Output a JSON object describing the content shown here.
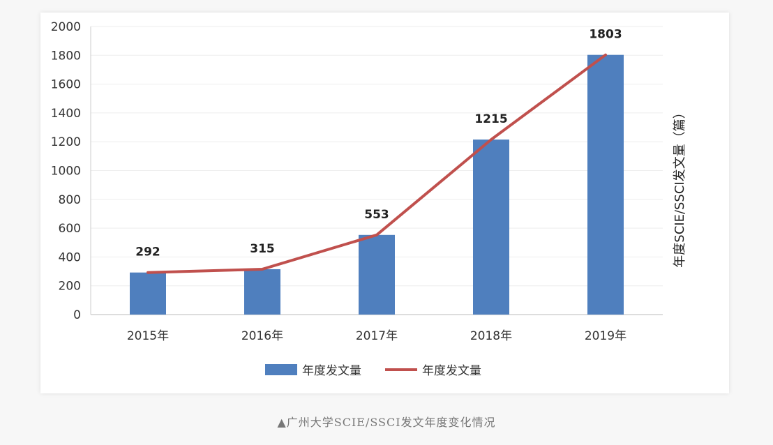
{
  "chart_data": {
    "type": "bar",
    "categories": [
      "2015年",
      "2016年",
      "2017年",
      "2018年",
      "2019年"
    ],
    "series": [
      {
        "name": "年度发文量",
        "kind": "bar",
        "values": [
          292,
          315,
          553,
          1215,
          1803
        ],
        "color": "#4f7fbe"
      },
      {
        "name": "年度发文量",
        "kind": "line",
        "values": [
          292,
          315,
          553,
          1215,
          1803
        ],
        "color": "#c0504d"
      }
    ],
    "data_labels": [
      "292",
      "315",
      "553",
      "1215",
      "1803"
    ],
    "yticks": [
      0,
      200,
      400,
      600,
      800,
      1000,
      1200,
      1400,
      1600,
      1800,
      2000
    ],
    "ylim": [
      0,
      2000
    ],
    "ylabel": "年度SCIE/SSCI发文量（篇）",
    "xlabel": "",
    "grid": true,
    "legend_position": "bottom"
  },
  "caption": "▲广州大学SCIE/SSCI发文年度变化情况"
}
